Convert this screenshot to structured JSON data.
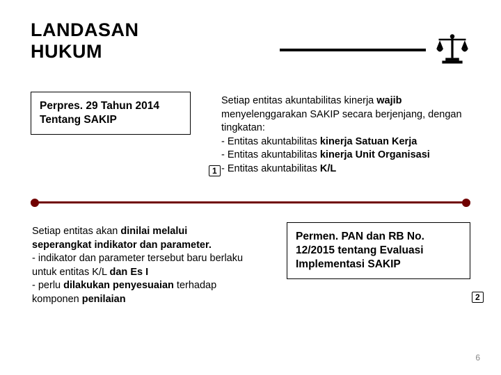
{
  "title_line1": "LANDASAN",
  "title_line2": "HUKUM",
  "item1": {
    "heading": "Perpres. 29 Tahun 2014 Tentang SAKIP",
    "num": "1",
    "desc_html": "Setiap entitas akuntabilitas kinerja <b>wajib</b> menyelenggarakan SAKIP secara berjenjang, dengan tingkatan:<br>- Entitas akuntabilitas <b>kinerja Satuan Kerja</b><br>- Entitas akuntabilitas <b>kinerja Unit Organisasi</b><br>- Entitas akuntabilitas <b>K/L</b>"
  },
  "item2": {
    "heading": "Permen. PAN dan RB No. 12/2015 tentang Evaluasi Implementasi SAKIP",
    "num": "2",
    "desc_html": "Setiap entitas akan <b>dinilai melalui seperangkat indikator dan parameter.</b><br>- indikator dan parameter tersebut baru berlaku untuk entitas K/L <b>dan Es I</b><br>- perlu <b>dilakukan penyesuaian</b> terhadap komponen <b>penilaian</b>"
  },
  "page_number": "6",
  "colors": {
    "timeline": "#700000",
    "text": "#000000",
    "page_num": "#888888"
  }
}
